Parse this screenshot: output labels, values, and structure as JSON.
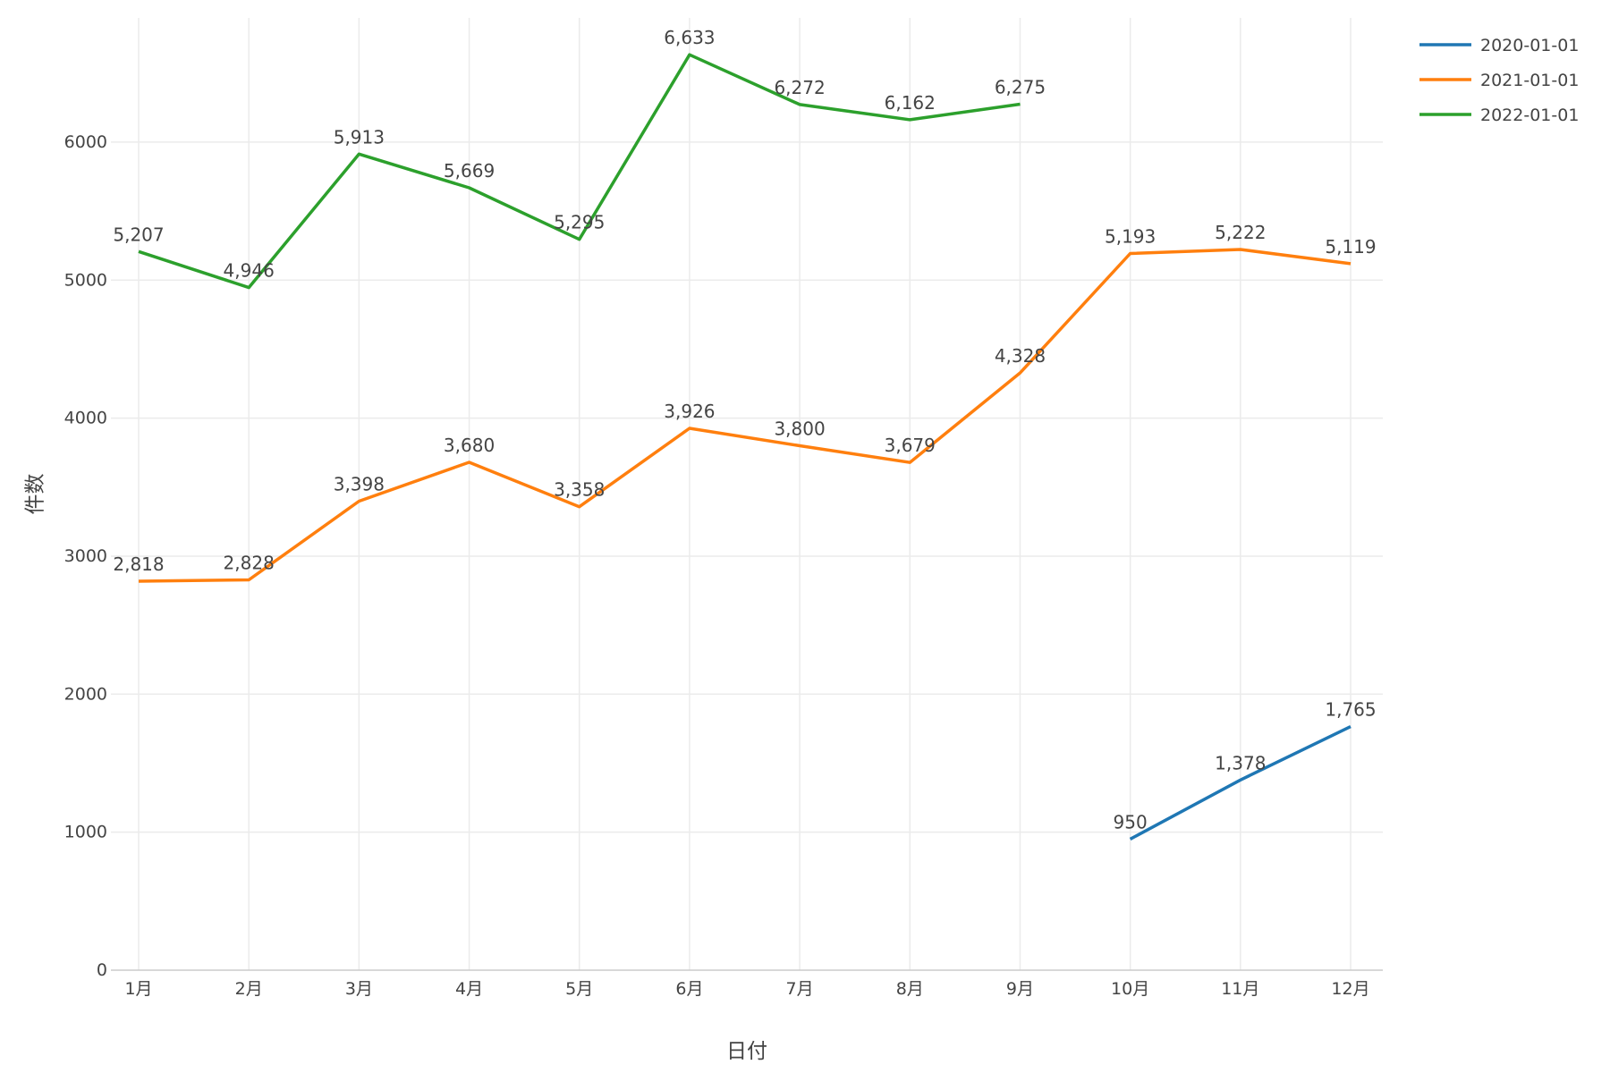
{
  "chart_data": {
    "type": "line",
    "xlabel": "日付",
    "ylabel": "件数",
    "categories": [
      "1月",
      "2月",
      "3月",
      "4月",
      "5月",
      "6月",
      "7月",
      "8月",
      "9月",
      "10月",
      "11月",
      "12月"
    ],
    "ylim": [
      0,
      6900
    ],
    "yticks": [
      0,
      1000,
      2000,
      3000,
      4000,
      5000,
      6000
    ],
    "grid": true,
    "legend_position": "top-right",
    "series": [
      {
        "name": "2020-01-01",
        "color": "#1f77b4",
        "values": [
          null,
          null,
          null,
          null,
          null,
          null,
          null,
          null,
          null,
          950,
          1378,
          1765
        ],
        "labels": [
          "",
          "",
          "",
          "",
          "",
          "",
          "",
          "",
          "",
          "950",
          "1,378",
          "1,765"
        ]
      },
      {
        "name": "2021-01-01",
        "color": "#ff7f0e",
        "values": [
          2818,
          2828,
          3398,
          3680,
          3358,
          3926,
          3800,
          3679,
          4328,
          5193,
          5222,
          5119
        ],
        "labels": [
          "2,818",
          "2,828",
          "3,398",
          "3,680",
          "3,358",
          "3,926",
          "3,800",
          "3,679",
          "4,328",
          "5,193",
          "5,222",
          "5,119"
        ]
      },
      {
        "name": "2022-01-01",
        "color": "#2ca02c",
        "values": [
          5207,
          4946,
          5913,
          5669,
          5295,
          6633,
          6272,
          6162,
          6275,
          null,
          null,
          null
        ],
        "labels": [
          "5,207",
          "4,946",
          "5,913",
          "5,669",
          "5,295",
          "6,633",
          "6,272",
          "6,162",
          "6,275",
          "",
          "",
          ""
        ]
      }
    ]
  }
}
